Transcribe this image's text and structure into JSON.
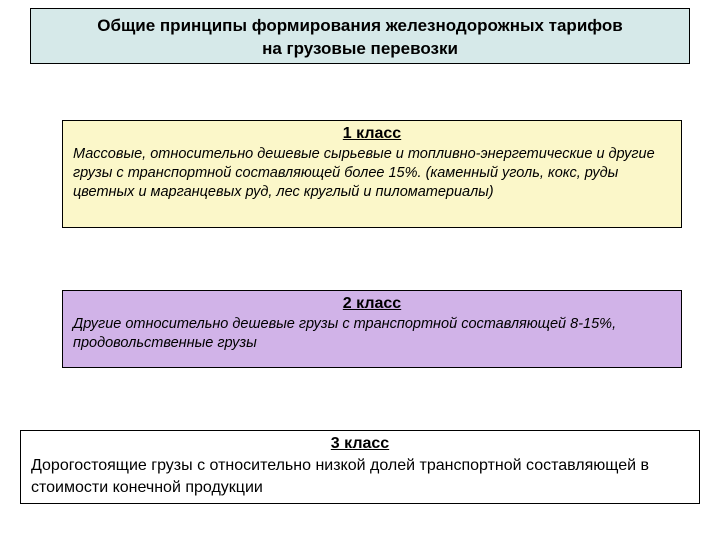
{
  "header": {
    "line1": "Общие принципы формирования железнодорожных тарифов",
    "line2": "на грузовые перевозки"
  },
  "classes": [
    {
      "title": "1 класс",
      "desc": "Массовые, относительно дешевые сырьевые и топливно-энергетические и другие грузы с транспортной составляющей более 15%. (каменный уголь, кокс, руды цветных и марганцевых руд, лес круглый и пиломатериалы)",
      "bg": "#fbf7c9"
    },
    {
      "title": "2 класс",
      "desc": "Другие относительно дешевые грузы с транспортной составляющей 8-15%, продовольственные грузы",
      "bg": "#d1b3e8"
    },
    {
      "title": "3 класс",
      "desc": "Дорогостоящие грузы с относительно низкой долей транспортной составляющей в стоимости конечной продукции",
      "bg": "#ffffff"
    }
  ],
  "colors": {
    "header_bg": "#d6e9e9",
    "border": "#000000",
    "page_bg": "#ffffff"
  }
}
